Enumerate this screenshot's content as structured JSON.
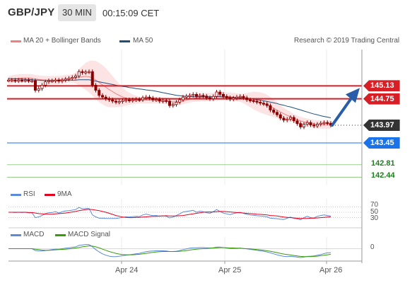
{
  "header": {
    "symbol": "GBP/JPY",
    "timeframe": "30 MIN",
    "time": "00:15:09 CET"
  },
  "legend": {
    "bollinger": "MA 20 + Bollinger Bands",
    "ma50": "MA 50",
    "source": "Research © 2019 Trading Central",
    "rsi": "RSI",
    "rsi_ma": "9MA",
    "macd": "MACD",
    "macd_signal": "MACD Signal"
  },
  "colors": {
    "candle": "#8b0000",
    "bollinger": "#f08080",
    "ma50": "#1f4e79",
    "resistance": "#d81f26",
    "support": "#1a73e8",
    "target": "#9acd8c",
    "pivot": "#333333",
    "rsi": "#5b8bd9",
    "rsi_ma": "#e8001c",
    "macd": "#5b8bd9",
    "macd_signal": "#3a9a0a",
    "arrow": "#2a5da8"
  },
  "levels": [
    {
      "value": "145.13",
      "style": "resistance"
    },
    {
      "value": "144.75",
      "style": "resistance"
    },
    {
      "value": "143.97",
      "style": "pivot"
    },
    {
      "value": "143.45",
      "style": "support"
    },
    {
      "value": "142.81",
      "style": "target"
    },
    {
      "value": "142.44",
      "style": "target"
    }
  ],
  "x_labels": [
    "Apr 24",
    "Apr 25",
    "Apr 26"
  ],
  "rsi_ticks": [
    "70",
    "50",
    "30"
  ],
  "macd_ticks": [
    "0"
  ],
  "chart_data": {
    "type": "candlestick",
    "price_range": [
      142.2,
      146.2
    ],
    "close": [
      145.3,
      145.3,
      145.28,
      145.3,
      145.29,
      145.3,
      145.28,
      145.28,
      145.0,
      145.05,
      145.15,
      145.25,
      145.28,
      145.28,
      145.3,
      145.27,
      145.3,
      145.33,
      145.35,
      145.38,
      145.42,
      145.55,
      145.52,
      145.54,
      145.55,
      145.15,
      145.0,
      144.85,
      144.8,
      144.75,
      144.72,
      144.68,
      144.65,
      144.67,
      144.7,
      144.72,
      144.7,
      144.72,
      144.73,
      144.72,
      144.78,
      144.8,
      144.77,
      144.72,
      144.73,
      144.68,
      144.7,
      144.68,
      144.55,
      144.58,
      144.65,
      144.72,
      144.8,
      144.83,
      144.85,
      144.88,
      144.82,
      144.85,
      144.83,
      144.78,
      144.75,
      144.82,
      144.95,
      144.88,
      144.82,
      144.78,
      144.74,
      144.77,
      144.8,
      144.82,
      144.78,
      144.72,
      144.7,
      144.68,
      144.65,
      144.62,
      144.6,
      144.55,
      144.42,
      144.35,
      144.28,
      144.18,
      144.12,
      144.15,
      144.2,
      144.1,
      144.02,
      143.92,
      144.0,
      144.05,
      143.98,
      143.95,
      144.0,
      144.03,
      144.05,
      144.03,
      143.97
    ],
    "ma20": [
      145.3,
      145.32,
      145.34,
      145.35,
      145.36,
      145.36,
      145.36,
      145.35,
      145.33,
      145.32,
      145.31,
      145.3,
      145.3,
      145.3,
      145.3,
      145.31,
      145.32,
      145.33,
      145.34,
      145.35,
      145.36,
      145.38,
      145.4,
      145.41,
      145.4,
      145.36,
      145.3,
      145.23,
      145.16,
      145.09,
      145.02,
      144.96,
      144.9,
      144.85,
      144.8,
      144.77,
      144.75,
      144.73,
      144.72,
      144.71,
      144.71,
      144.71,
      144.71,
      144.71,
      144.71,
      144.71,
      144.7,
      144.69,
      144.67,
      144.66,
      144.66,
      144.67,
      144.69,
      144.71,
      144.74,
      144.76,
      144.78,
      144.79,
      144.8,
      144.8,
      144.8,
      144.81,
      144.82,
      144.83,
      144.83,
      144.82,
      144.81,
      144.8,
      144.79,
      144.78,
      144.76,
      144.74,
      144.72,
      144.7,
      144.67,
      144.64,
      144.61,
      144.57,
      144.52,
      144.47,
      144.42,
      144.36,
      144.31,
      144.26,
      144.22,
      144.18,
      144.14,
      144.1,
      144.07,
      144.05,
      144.03,
      144.01,
      144.0,
      143.99,
      143.99,
      143.99,
      143.99
    ],
    "bb_width": [
      0.12,
      0.12,
      0.12,
      0.12,
      0.12,
      0.12,
      0.12,
      0.12,
      0.12,
      0.12,
      0.12,
      0.12,
      0.12,
      0.12,
      0.12,
      0.12,
      0.12,
      0.12,
      0.12,
      0.12,
      0.16,
      0.24,
      0.32,
      0.4,
      0.46,
      0.52,
      0.56,
      0.58,
      0.58,
      0.56,
      0.52,
      0.46,
      0.4,
      0.34,
      0.28,
      0.22,
      0.18,
      0.14,
      0.12,
      0.1,
      0.1,
      0.1,
      0.1,
      0.1,
      0.1,
      0.1,
      0.1,
      0.1,
      0.1,
      0.1,
      0.1,
      0.1,
      0.1,
      0.1,
      0.1,
      0.1,
      0.12,
      0.12,
      0.12,
      0.12,
      0.12,
      0.12,
      0.12,
      0.12,
      0.12,
      0.12,
      0.12,
      0.12,
      0.12,
      0.12,
      0.14,
      0.18,
      0.22,
      0.26,
      0.28,
      0.3,
      0.3,
      0.3,
      0.28,
      0.26,
      0.24,
      0.2,
      0.18,
      0.16,
      0.14,
      0.12,
      0.12,
      0.12,
      0.12,
      0.12,
      0.12,
      0.12,
      0.12,
      0.12,
      0.12,
      0.12,
      0.12
    ],
    "ma50": [
      145.35,
      145.34,
      145.34,
      145.33,
      145.33,
      145.32,
      145.32,
      145.31,
      145.3,
      145.3,
      145.29,
      145.29,
      145.29,
      145.29,
      145.29,
      145.29,
      145.29,
      145.29,
      145.3,
      145.3,
      145.3,
      145.31,
      145.31,
      145.31,
      145.31,
      145.29,
      145.27,
      145.25,
      145.23,
      145.21,
      145.19,
      145.17,
      145.15,
      145.13,
      145.11,
      145.1,
      145.08,
      145.07,
      145.05,
      145.04,
      145.03,
      145.01,
      145.0,
      144.99,
      144.97,
      144.95,
      144.93,
      144.91,
      144.89,
      144.87,
      144.85,
      144.84,
      144.83,
      144.82,
      144.82,
      144.81,
      144.81,
      144.81,
      144.81,
      144.81,
      144.81,
      144.81,
      144.81,
      144.81,
      144.8,
      144.8,
      144.79,
      144.79,
      144.78,
      144.78,
      144.77,
      144.76,
      144.75,
      144.74,
      144.72,
      144.71,
      144.69,
      144.67,
      144.65,
      144.63,
      144.61,
      144.58,
      144.56,
      144.53,
      144.51,
      144.48,
      144.45,
      144.42,
      144.39,
      144.36,
      144.33,
      144.3,
      144.28,
      144.25,
      144.23,
      144.21,
      144.19
    ],
    "rsi": [
      50,
      50,
      49,
      50,
      49,
      50,
      48,
      48,
      30,
      33,
      38,
      45,
      48,
      49,
      52,
      47,
      52,
      55,
      56,
      58,
      60,
      68,
      63,
      64,
      64,
      40,
      33,
      28,
      28,
      27,
      27,
      27,
      27,
      29,
      31,
      33,
      32,
      34,
      35,
      34,
      40,
      43,
      40,
      37,
      38,
      35,
      37,
      35,
      29,
      32,
      38,
      44,
      51,
      53,
      55,
      57,
      50,
      54,
      52,
      48,
      46,
      52,
      60,
      53,
      47,
      44,
      41,
      45,
      48,
      50,
      46,
      42,
      40,
      39,
      37,
      36,
      35,
      33,
      28,
      27,
      26,
      24,
      23,
      28,
      32,
      27,
      25,
      22,
      30,
      35,
      30,
      29,
      35,
      38,
      40,
      38,
      36
    ],
    "rsi_ma": [
      50,
      50,
      50,
      50,
      50,
      50,
      49,
      49,
      47,
      45,
      44,
      43,
      43,
      43,
      44,
      45,
      46,
      47,
      49,
      51,
      53,
      56,
      58,
      60,
      61,
      60,
      58,
      56,
      53,
      50,
      46,
      42,
      38,
      35,
      32,
      31,
      30,
      30,
      31,
      31,
      32,
      33,
      34,
      35,
      35,
      36,
      36,
      37,
      36,
      36,
      36,
      37,
      38,
      40,
      42,
      44,
      46,
      48,
      50,
      51,
      51,
      51,
      52,
      53,
      53,
      52,
      51,
      50,
      49,
      48,
      47,
      46,
      45,
      44,
      43,
      42,
      41,
      40,
      38,
      37,
      36,
      34,
      32,
      31,
      30,
      29,
      28,
      27,
      27,
      27,
      28,
      28,
      29,
      30,
      31,
      32,
      33
    ],
    "macd": [
      0.0,
      0.0,
      0.0,
      0.0,
      0.0,
      0.0,
      0.0,
      0.0,
      -0.08,
      -0.1,
      -0.1,
      -0.08,
      -0.06,
      -0.04,
      -0.02,
      -0.02,
      0.0,
      0.02,
      0.04,
      0.06,
      0.08,
      0.14,
      0.16,
      0.18,
      0.18,
      0.08,
      -0.04,
      -0.14,
      -0.22,
      -0.28,
      -0.32,
      -0.34,
      -0.34,
      -0.32,
      -0.3,
      -0.28,
      -0.26,
      -0.24,
      -0.22,
      -0.2,
      -0.16,
      -0.13,
      -0.11,
      -0.1,
      -0.09,
      -0.09,
      -0.09,
      -0.1,
      -0.12,
      -0.12,
      -0.11,
      -0.08,
      -0.04,
      -0.01,
      0.02,
      0.04,
      0.04,
      0.05,
      0.05,
      0.04,
      0.03,
      0.04,
      0.07,
      0.07,
      0.05,
      0.03,
      0.01,
      0.01,
      0.01,
      0.02,
      0.01,
      -0.01,
      -0.03,
      -0.05,
      -0.07,
      -0.09,
      -0.11,
      -0.14,
      -0.18,
      -0.22,
      -0.26,
      -0.3,
      -0.33,
      -0.34,
      -0.33,
      -0.34,
      -0.36,
      -0.38,
      -0.36,
      -0.33,
      -0.32,
      -0.31,
      -0.28,
      -0.25,
      -0.21,
      -0.18,
      -0.17
    ],
    "macd_signal": [
      0.0,
      0.0,
      0.0,
      0.0,
      0.0,
      0.0,
      0.0,
      0.0,
      -0.02,
      -0.04,
      -0.06,
      -0.07,
      -0.07,
      -0.06,
      -0.05,
      -0.04,
      -0.03,
      -0.02,
      -0.01,
      0.01,
      0.03,
      0.05,
      0.08,
      0.1,
      0.12,
      0.11,
      0.08,
      0.04,
      -0.02,
      -0.07,
      -0.12,
      -0.16,
      -0.2,
      -0.23,
      -0.25,
      -0.26,
      -0.26,
      -0.26,
      -0.25,
      -0.24,
      -0.22,
      -0.2,
      -0.18,
      -0.16,
      -0.14,
      -0.13,
      -0.12,
      -0.12,
      -0.12,
      -0.12,
      -0.12,
      -0.11,
      -0.1,
      -0.08,
      -0.06,
      -0.04,
      -0.02,
      -0.01,
      0.0,
      0.01,
      0.02,
      0.03,
      0.04,
      0.05,
      0.05,
      0.04,
      0.03,
      0.03,
      0.02,
      0.02,
      0.01,
      0.0,
      -0.01,
      -0.02,
      -0.04,
      -0.05,
      -0.07,
      -0.09,
      -0.11,
      -0.14,
      -0.17,
      -0.2,
      -0.23,
      -0.25,
      -0.27,
      -0.29,
      -0.31,
      -0.33,
      -0.34,
      -0.34,
      -0.34,
      -0.33,
      -0.32,
      -0.3,
      -0.28,
      -0.26,
      -0.24
    ],
    "rsi_range": [
      0,
      100
    ],
    "macd_range": [
      -0.5,
      0.5
    ]
  }
}
